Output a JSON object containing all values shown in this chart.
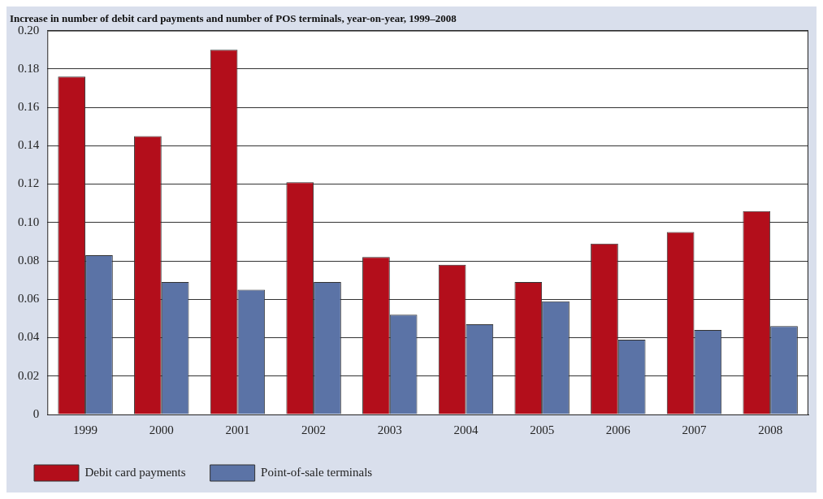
{
  "chart_data": {
    "type": "bar",
    "title": "Increase in number of debit card payments and number of POS terminals, year-on-year, 1999–2008",
    "categories": [
      "1999",
      "2000",
      "2001",
      "2002",
      "2003",
      "2004",
      "2005",
      "2006",
      "2007",
      "2008"
    ],
    "series": [
      {
        "name": "Debit card payments",
        "color": "#b30e1b",
        "values": [
          0.176,
          0.145,
          0.19,
          0.121,
          0.082,
          0.078,
          0.069,
          0.089,
          0.095,
          0.106
        ]
      },
      {
        "name": "Point-of-sale terminals",
        "color": "#5b73a6",
        "values": [
          0.083,
          0.069,
          0.065,
          0.069,
          0.052,
          0.047,
          0.059,
          0.039,
          0.044,
          0.046
        ]
      }
    ],
    "ylim": [
      0,
      0.2
    ],
    "yticks": [
      "0",
      {
        "value": 0.02,
        "label": "0.02"
      },
      {
        "value": 0.04,
        "label": "0.04"
      },
      {
        "value": 0.06,
        "label": "0.06"
      },
      {
        "value": 0.08,
        "label": "0.08"
      },
      {
        "value": 0.1,
        "label": "0.10"
      },
      {
        "value": 0.12,
        "label": "0.12"
      },
      {
        "value": 0.14,
        "label": "0.14"
      },
      {
        "value": 0.16,
        "label": "0.16"
      },
      {
        "value": 0.18,
        "label": "0.18"
      },
      {
        "value": 0.2,
        "label": "0.20"
      }
    ],
    "grid": "y",
    "legend": "bottom left"
  }
}
